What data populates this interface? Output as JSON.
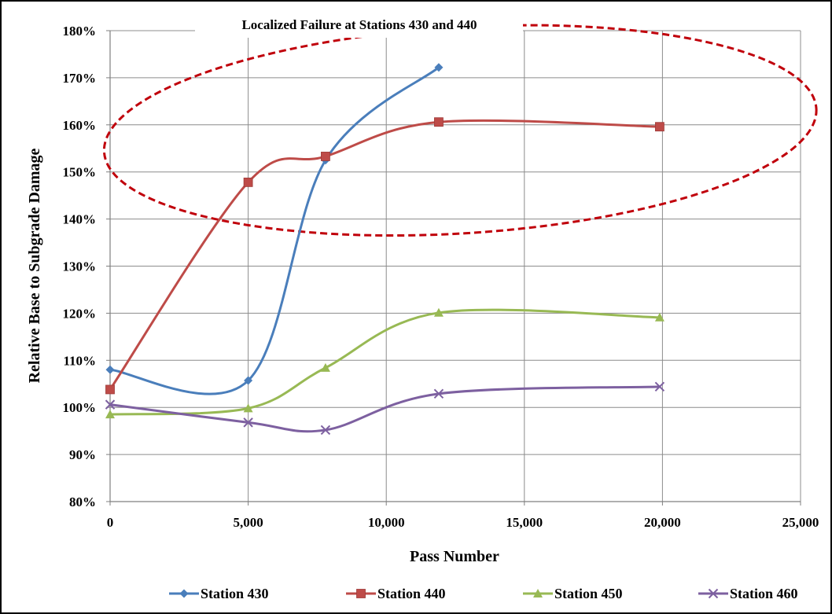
{
  "chart_data": {
    "type": "line",
    "title": "Localized Failure at Stations 430 and 440",
    "xlabel": "Pass Number",
    "ylabel": "Relative Base to Subgrade Damage",
    "xlim": [
      0,
      25000
    ],
    "ylim": [
      80,
      180
    ],
    "x_ticks": [
      0,
      5000,
      10000,
      15000,
      20000,
      25000
    ],
    "x_tick_labels": [
      "0",
      "5,000",
      "10,000",
      "15,000",
      "20,000",
      "25,000"
    ],
    "y_ticks": [
      80,
      90,
      100,
      110,
      120,
      130,
      140,
      150,
      160,
      170,
      180
    ],
    "y_tick_labels": [
      "80%",
      "90%",
      "100%",
      "110%",
      "120%",
      "130%",
      "140%",
      "150%",
      "160%",
      "170%",
      "180%"
    ],
    "grid": "major x and y",
    "legend_position": "bottom",
    "series": [
      {
        "name": "Station 430",
        "color": "#4a7ebb",
        "marker": "diamond",
        "x": [
          0,
          5000,
          7800,
          11900
        ],
        "y": [
          108.0,
          105.7,
          152.5,
          172.2
        ]
      },
      {
        "name": "Station 440",
        "color": "#be4b48",
        "marker": "square",
        "x": [
          0,
          5000,
          7800,
          11900,
          19900
        ],
        "y": [
          103.8,
          147.8,
          153.3,
          160.6,
          159.6
        ]
      },
      {
        "name": "Station 450",
        "color": "#98b954",
        "marker": "triangle",
        "x": [
          0,
          5000,
          7800,
          11900,
          19900
        ],
        "y": [
          98.5,
          99.8,
          108.4,
          120.1,
          119.1
        ]
      },
      {
        "name": "Station 460",
        "color": "#7d60a0",
        "marker": "x",
        "x": [
          0,
          5000,
          7800,
          11900,
          19900
        ],
        "y": [
          100.6,
          96.8,
          95.2,
          102.9,
          104.4
        ]
      }
    ],
    "annotation": {
      "shape": "dashed-ellipse",
      "color": "#c0000b",
      "encloses": [
        "Station 430",
        "Station 440"
      ]
    }
  }
}
